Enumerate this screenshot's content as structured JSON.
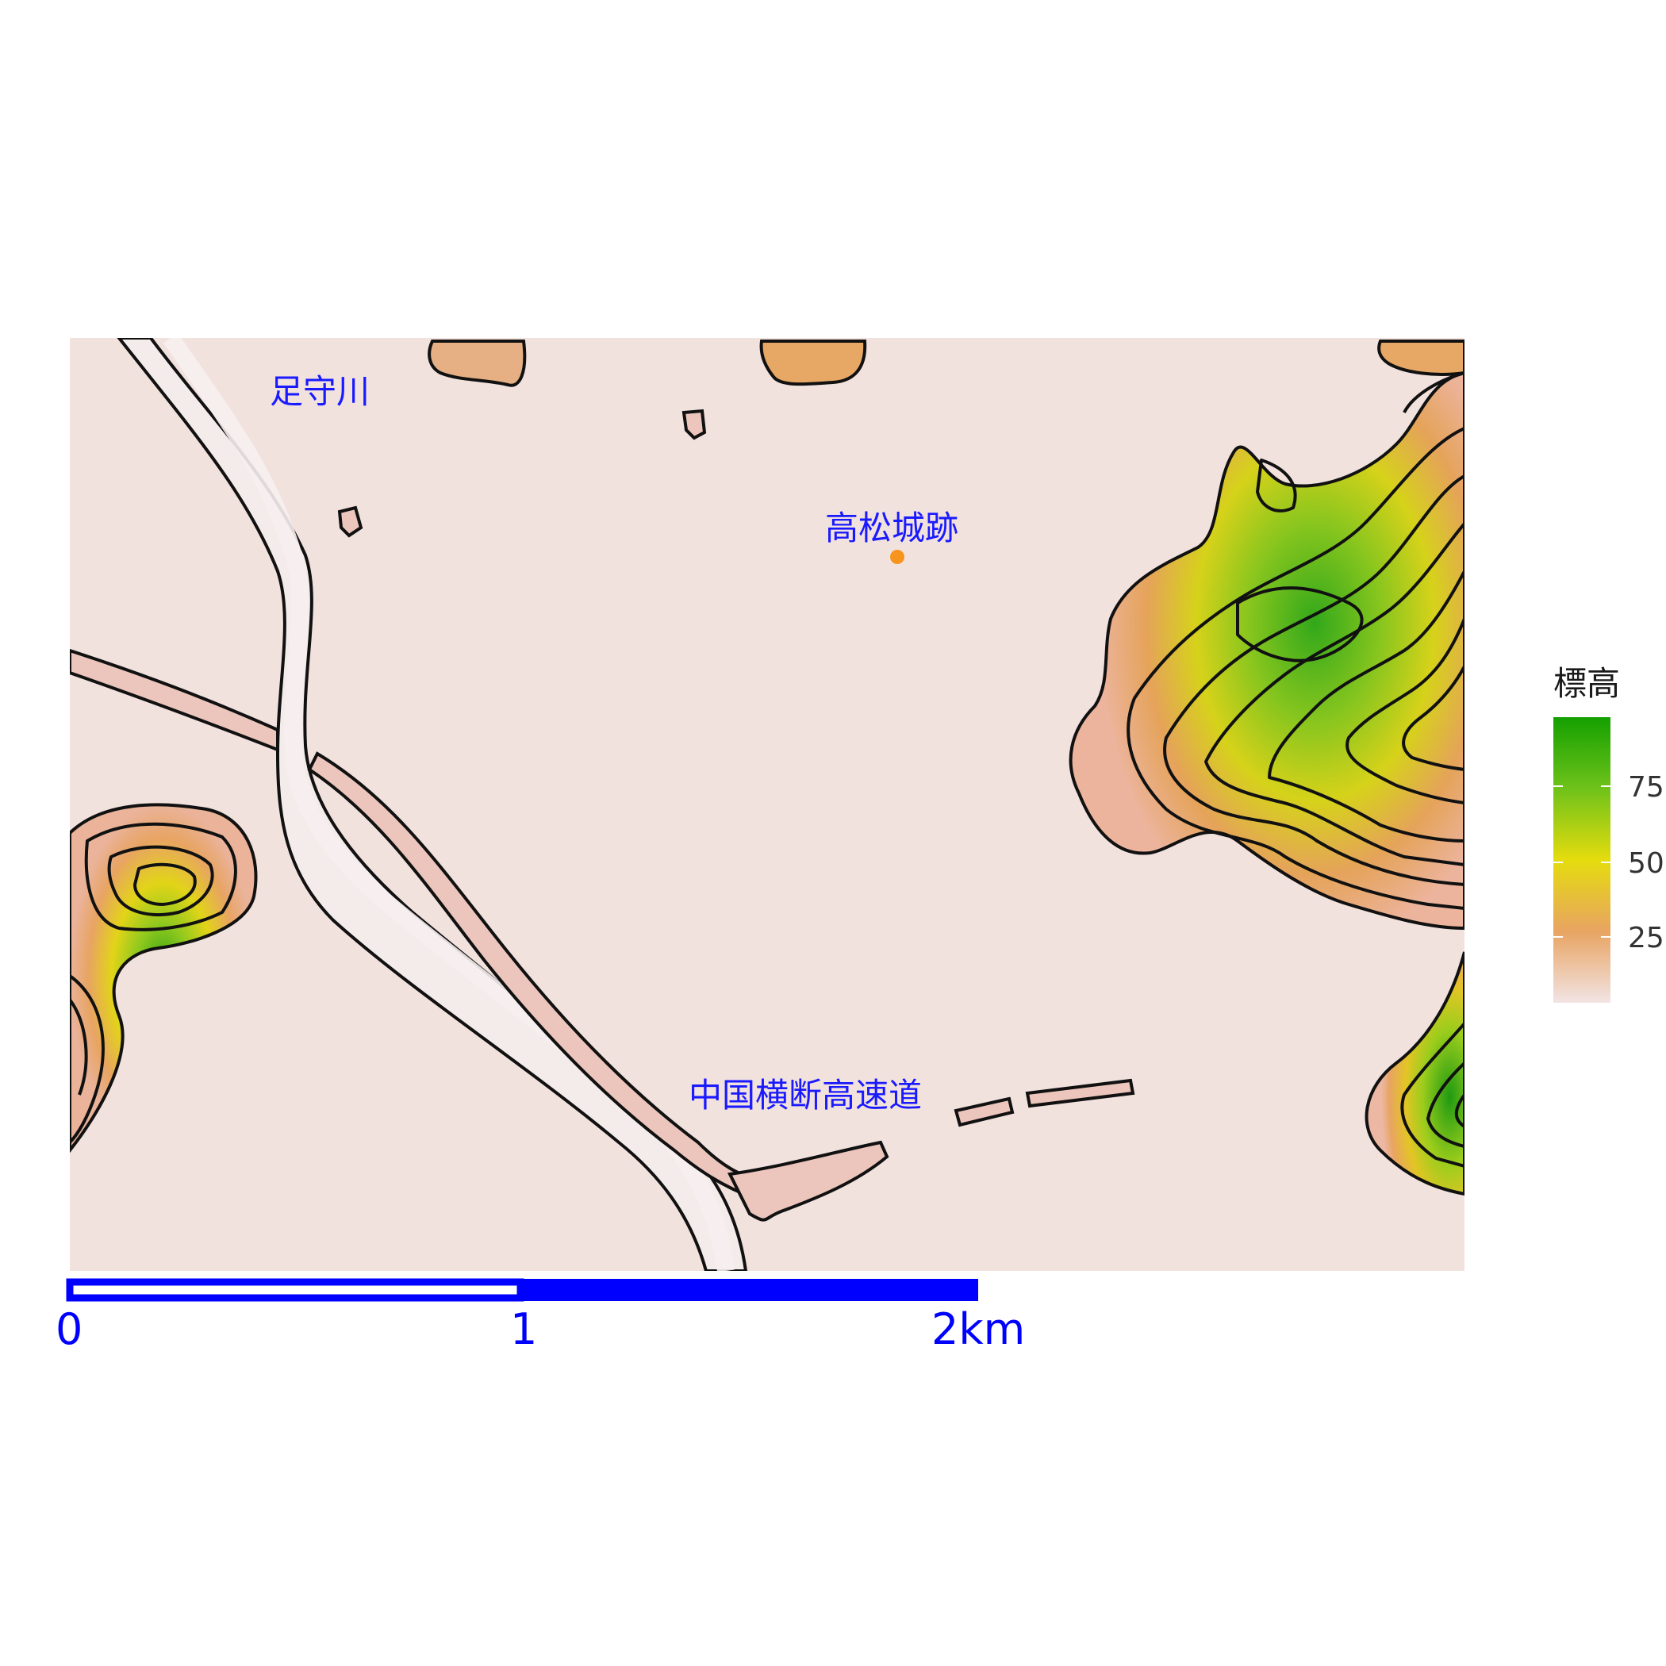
{
  "labels": {
    "river": "足守川",
    "castle": "高松城跡",
    "highway": "中国横断高速道"
  },
  "scale_bar": {
    "ticks": [
      "0",
      "1",
      "2km"
    ],
    "color": "#0000ff"
  },
  "legend": {
    "title": "標高",
    "ticks": [
      {
        "value": 25,
        "label": "25"
      },
      {
        "value": 50,
        "label": "50"
      },
      {
        "value": 75,
        "label": "75"
      }
    ],
    "range": [
      0,
      100
    ],
    "colors": {
      "low": "#f2e4e4",
      "mid_low": "#e8a462",
      "mid": "#e5dc0e",
      "mid_high": "#6fc21a",
      "high": "#14a000"
    }
  },
  "markers": {
    "castle_point_color": "#f7941d"
  },
  "map_colors": {
    "lowland": "#f0dcd8",
    "river": "#f3e9e8"
  }
}
